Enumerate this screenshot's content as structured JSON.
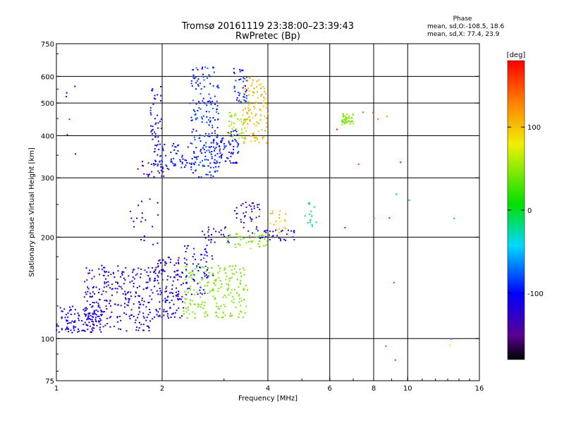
{
  "header": {
    "title": "Tromsø 20161119 23:38:00–23:39:43",
    "subtitle": "RwPretec (Bp)"
  },
  "stats": {
    "heading": "Phase",
    "line1": "mean, sd,O:-108.5, 18.6",
    "line2": "mean, sd,X:  77.4, 23.9"
  },
  "colorbar": {
    "label": "[deg]",
    "range": [
      -180,
      180
    ],
    "ticks": [
      "100",
      "0",
      "-100"
    ]
  },
  "chart_data": {
    "type": "scatter",
    "title": "Tromsø 20161119 23:38:00–23:39:43",
    "subtitle": "RwPretec (Bp)",
    "xlabel": "Frequency [MHz]",
    "ylabel": "Stationary phase Virtual Height [km]",
    "xscale": "log",
    "yscale": "log",
    "xlim": [
      1,
      16
    ],
    "ylim": [
      75,
      750
    ],
    "xticks": [
      "1",
      "2",
      "4",
      "6",
      "8",
      "10",
      "16"
    ],
    "yticks": [
      "750",
      "600",
      "500",
      "400",
      "300",
      "200",
      "100",
      "75"
    ],
    "xgrid": [
      2,
      4,
      6,
      8,
      10
    ],
    "ygrid": [
      600,
      500,
      400,
      300,
      200,
      100
    ],
    "clusters": [
      {
        "x": [
          1.0,
          1.35
        ],
        "y": [
          104,
          125
        ],
        "phase": [
          -120,
          -100
        ],
        "n": 120
      },
      {
        "x": [
          1.2,
          1.9
        ],
        "y": [
          105,
          165
        ],
        "phase": [
          -140,
          -100
        ],
        "n": 260
      },
      {
        "x": [
          1.9,
          2.3
        ],
        "y": [
          115,
          175
        ],
        "phase": [
          -140,
          -95
        ],
        "n": 140
      },
      {
        "x": [
          2.3,
          2.7
        ],
        "y": [
          135,
          180
        ],
        "phase": [
          -110,
          -90
        ],
        "n": 40
      },
      {
        "x": [
          2.3,
          3.5
        ],
        "y": [
          115,
          165
        ],
        "phase": [
          35,
          55
        ],
        "n": 190
      },
      {
        "x": [
          2.3,
          2.8
        ],
        "y": [
          150,
          190
        ],
        "phase": [
          -120,
          -80
        ],
        "n": 30
      },
      {
        "x": [
          2.6,
          3.1
        ],
        "y": [
          190,
          215
        ],
        "phase": [
          -150,
          -110
        ],
        "n": 25
      },
      {
        "x": [
          3.0,
          4.0
        ],
        "y": [
          185,
          205
        ],
        "phase": [
          30,
          60
        ],
        "n": 40
      },
      {
        "x": [
          3.2,
          3.8
        ],
        "y": [
          205,
          255
        ],
        "phase": [
          -160,
          -110
        ],
        "n": 40
      },
      {
        "x": [
          3.8,
          4.8
        ],
        "y": [
          195,
          210
        ],
        "phase": [
          -140,
          -100
        ],
        "n": 30
      },
      {
        "x": [
          4.0,
          4.5
        ],
        "y": [
          205,
          240
        ],
        "phase": [
          80,
          120
        ],
        "n": 20
      },
      {
        "x": [
          5.1,
          5.5
        ],
        "y": [
          215,
          255
        ],
        "phase": [
          -40,
          0
        ],
        "n": 15
      },
      {
        "x": [
          1.6,
          2.0
        ],
        "y": [
          190,
          260
        ],
        "phase": [
          -140,
          -100
        ],
        "n": 20
      },
      {
        "x": [
          1.7,
          2.1
        ],
        "y": [
          300,
          340
        ],
        "phase": [
          -150,
          -110
        ],
        "n": 30
      },
      {
        "x": [
          1.9,
          2.4
        ],
        "y": [
          320,
          380
        ],
        "phase": [
          -120,
          -80
        ],
        "n": 60
      },
      {
        "x": [
          1.85,
          2.0
        ],
        "y": [
          350,
          560
        ],
        "phase": [
          -120,
          -90
        ],
        "n": 40
      },
      {
        "x": [
          2.4,
          2.9
        ],
        "y": [
          300,
          640
        ],
        "phase": [
          -110,
          -70
        ],
        "n": 200
      },
      {
        "x": [
          2.8,
          3.3
        ],
        "y": [
          330,
          420
        ],
        "phase": [
          -130,
          -80
        ],
        "n": 80
      },
      {
        "x": [
          3.1,
          3.5
        ],
        "y": [
          390,
          470
        ],
        "phase": [
          40,
          70
        ],
        "n": 40
      },
      {
        "x": [
          3.4,
          4.0
        ],
        "y": [
          380,
          600
        ],
        "phase": [
          90,
          125
        ],
        "n": 110
      },
      {
        "x": [
          3.2,
          3.5
        ],
        "y": [
          500,
          640
        ],
        "phase": [
          -120,
          -70
        ],
        "n": 40
      },
      {
        "x": [
          6.5,
          7.0
        ],
        "y": [
          430,
          465
        ],
        "phase": [
          30,
          60
        ],
        "n": 40
      },
      {
        "x": [
          1.05,
          1.15
        ],
        "y": [
          330,
          580
        ],
        "phase": [
          -110,
          -80
        ],
        "n": 6
      },
      {
        "x": [
          6.0,
          10.0
        ],
        "y": [
          85,
          500
        ],
        "phase": [
          130,
          180
        ],
        "n": 12
      },
      {
        "x": [
          8.0,
          14.0
        ],
        "y": [
          90,
          510
        ],
        "phase": [
          -60,
          80
        ],
        "n": 6
      }
    ]
  }
}
